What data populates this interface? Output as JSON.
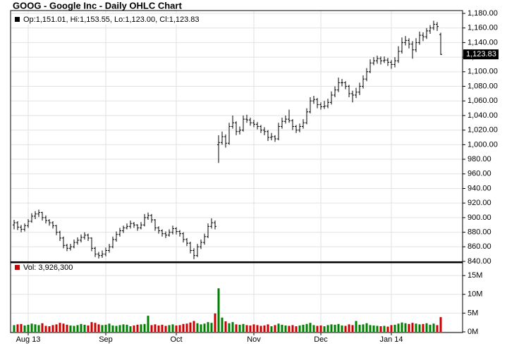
{
  "chart_data": {
    "type": "ohlc",
    "title": "GOOG - Google Inc - Daily OHLC Chart",
    "ohlc_label": "Op:1,151.01, Hi:1,153.55, Lo:1,123.00, Cl:1,123.83",
    "last_label": "1,123.83",
    "color": "#000000",
    "grid": true,
    "categories": [
      null,
      null,
      null,
      null,
      "Aug 13",
      null,
      null,
      null,
      null,
      null,
      null,
      null,
      null,
      null,
      null,
      null,
      null,
      null,
      null,
      null,
      null,
      null,
      null,
      null,
      null,
      null,
      "Sep",
      null,
      null,
      null,
      null,
      null,
      null,
      null,
      null,
      null,
      null,
      null,
      null,
      null,
      null,
      null,
      null,
      null,
      null,
      null,
      "Oct",
      null,
      null,
      null,
      null,
      null,
      null,
      null,
      null,
      null,
      null,
      null,
      null,
      null,
      null,
      null,
      null,
      null,
      null,
      null,
      null,
      null,
      "Nov",
      null,
      null,
      null,
      null,
      null,
      null,
      null,
      null,
      null,
      null,
      null,
      null,
      null,
      null,
      null,
      null,
      null,
      null,
      "Dec",
      null,
      null,
      null,
      null,
      null,
      null,
      null,
      null,
      null,
      null,
      null,
      null,
      null,
      null,
      null,
      null,
      null,
      null,
      null,
      "Jan 14",
      null,
      null,
      null,
      null,
      null,
      null,
      null,
      null,
      null,
      null,
      null,
      null,
      null,
      null
    ],
    "ohlc": [
      [
        890,
        897,
        884,
        893
      ],
      [
        893,
        895,
        883,
        887
      ],
      [
        887,
        890,
        880,
        884
      ],
      [
        884,
        892,
        881,
        889
      ],
      [
        889,
        898,
        886,
        895
      ],
      [
        895,
        906,
        893,
        902
      ],
      [
        902,
        909,
        898,
        905
      ],
      [
        905,
        911,
        901,
        907
      ],
      [
        907,
        908,
        896,
        900
      ],
      [
        900,
        903,
        892,
        896
      ],
      [
        896,
        898,
        889,
        893
      ],
      [
        893,
        895,
        885,
        889
      ],
      [
        889,
        890,
        876,
        880
      ],
      [
        880,
        882,
        868,
        872
      ],
      [
        872,
        874,
        858,
        862
      ],
      [
        862,
        864,
        854,
        858
      ],
      [
        858,
        864,
        855,
        860
      ],
      [
        860,
        870,
        858,
        866
      ],
      [
        866,
        873,
        863,
        869
      ],
      [
        869,
        877,
        866,
        873
      ],
      [
        873,
        880,
        870,
        876
      ],
      [
        876,
        878,
        868,
        872
      ],
      [
        872,
        873,
        854,
        858
      ],
      [
        858,
        860,
        846,
        850
      ],
      [
        850,
        853,
        844,
        848
      ],
      [
        848,
        855,
        845,
        850
      ],
      [
        850,
        859,
        847,
        855
      ],
      [
        855,
        864,
        852,
        860
      ],
      [
        860,
        874,
        858,
        870
      ],
      [
        870,
        881,
        867,
        877
      ],
      [
        877,
        886,
        874,
        882
      ],
      [
        882,
        889,
        879,
        886
      ],
      [
        886,
        892,
        884,
        888
      ],
      [
        888,
        896,
        885,
        892
      ],
      [
        892,
        894,
        886,
        890
      ],
      [
        890,
        891,
        882,
        886
      ],
      [
        886,
        894,
        884,
        890
      ],
      [
        890,
        905,
        888,
        900
      ],
      [
        900,
        907,
        897,
        903
      ],
      [
        903,
        905,
        893,
        897
      ],
      [
        897,
        898,
        882,
        886
      ],
      [
        886,
        888,
        878,
        882
      ],
      [
        882,
        884,
        874,
        878
      ],
      [
        878,
        881,
        872,
        876
      ],
      [
        876,
        884,
        874,
        880
      ],
      [
        880,
        889,
        877,
        885
      ],
      [
        885,
        887,
        877,
        881
      ],
      [
        881,
        883,
        874,
        878
      ],
      [
        878,
        880,
        866,
        870
      ],
      [
        870,
        872,
        861,
        865
      ],
      [
        865,
        867,
        851,
        855
      ],
      [
        855,
        858,
        843,
        848
      ],
      [
        848,
        864,
        846,
        860
      ],
      [
        860,
        870,
        857,
        866
      ],
      [
        866,
        878,
        863,
        874
      ],
      [
        874,
        892,
        872,
        888
      ],
      [
        888,
        899,
        885,
        893
      ],
      [
        893,
        896,
        884,
        888
      ],
      [
        1000,
        1013,
        975,
        1003
      ],
      [
        1003,
        1018,
        1000,
        1011
      ],
      [
        1011,
        1014,
        996,
        1002
      ],
      [
        1002,
        1030,
        1000,
        1025
      ],
      [
        1025,
        1040,
        1022,
        1030
      ],
      [
        1030,
        1032,
        1013,
        1018
      ],
      [
        1018,
        1025,
        1014,
        1020
      ],
      [
        1020,
        1040,
        1018,
        1035
      ],
      [
        1035,
        1041,
        1030,
        1034
      ],
      [
        1034,
        1037,
        1026,
        1030
      ],
      [
        1030,
        1034,
        1024,
        1028
      ],
      [
        1028,
        1031,
        1021,
        1025
      ],
      [
        1025,
        1027,
        1016,
        1020
      ],
      [
        1020,
        1024,
        1013,
        1018
      ],
      [
        1018,
        1020,
        1005,
        1010
      ],
      [
        1010,
        1016,
        1006,
        1011
      ],
      [
        1011,
        1013,
        1004,
        1008
      ],
      [
        1008,
        1030,
        1006,
        1025
      ],
      [
        1025,
        1037,
        1022,
        1032
      ],
      [
        1032,
        1040,
        1029,
        1035
      ],
      [
        1035,
        1048,
        1030,
        1033
      ],
      [
        1033,
        1035,
        1020,
        1025
      ],
      [
        1025,
        1027,
        1016,
        1020
      ],
      [
        1020,
        1029,
        1017,
        1025
      ],
      [
        1025,
        1035,
        1022,
        1030
      ],
      [
        1030,
        1050,
        1028,
        1045
      ],
      [
        1045,
        1065,
        1043,
        1060
      ],
      [
        1060,
        1067,
        1056,
        1062
      ],
      [
        1062,
        1064,
        1050,
        1055
      ],
      [
        1055,
        1058,
        1048,
        1052
      ],
      [
        1052,
        1060,
        1049,
        1053
      ],
      [
        1053,
        1063,
        1050,
        1058
      ],
      [
        1058,
        1073,
        1055,
        1068
      ],
      [
        1068,
        1080,
        1065,
        1075
      ],
      [
        1075,
        1092,
        1072,
        1085
      ],
      [
        1085,
        1090,
        1080,
        1085
      ],
      [
        1085,
        1087,
        1076,
        1080
      ],
      [
        1080,
        1082,
        1065,
        1070
      ],
      [
        1070,
        1074,
        1058,
        1068
      ],
      [
        1068,
        1078,
        1064,
        1072
      ],
      [
        1072,
        1085,
        1068,
        1080
      ],
      [
        1080,
        1095,
        1077,
        1090
      ],
      [
        1090,
        1105,
        1087,
        1100
      ],
      [
        1100,
        1117,
        1098,
        1112
      ],
      [
        1112,
        1120,
        1109,
        1115
      ],
      [
        1115,
        1122,
        1111,
        1118
      ],
      [
        1118,
        1121,
        1110,
        1115
      ],
      [
        1115,
        1121,
        1112,
        1116
      ],
      [
        1116,
        1119,
        1108,
        1113
      ],
      [
        1113,
        1116,
        1104,
        1110
      ],
      [
        1110,
        1120,
        1106,
        1115
      ],
      [
        1115,
        1135,
        1112,
        1128
      ],
      [
        1128,
        1147,
        1125,
        1140
      ],
      [
        1140,
        1149,
        1136,
        1143
      ],
      [
        1143,
        1146,
        1132,
        1138
      ],
      [
        1138,
        1142,
        1118,
        1130
      ],
      [
        1130,
        1146,
        1127,
        1140
      ],
      [
        1140,
        1155,
        1137,
        1150
      ],
      [
        1150,
        1154,
        1142,
        1148
      ],
      [
        1148,
        1160,
        1145,
        1156
      ],
      [
        1156,
        1164,
        1152,
        1160
      ],
      [
        1160,
        1170,
        1157,
        1165
      ],
      [
        1165,
        1168,
        1156,
        1162
      ],
      [
        1151.01,
        1153.55,
        1123.0,
        1123.83
      ]
    ],
    "ylim": [
      840,
      1180
    ],
    "yticks": [
      {
        "value": 840,
        "label": "840.00"
      },
      {
        "value": 860,
        "label": "860.00"
      },
      {
        "value": 880,
        "label": "880.00"
      },
      {
        "value": 900,
        "label": "900.00"
      },
      {
        "value": 920,
        "label": "920.00"
      },
      {
        "value": 940,
        "label": "940.00"
      },
      {
        "value": 960,
        "label": "960.00"
      },
      {
        "value": 980,
        "label": "980.00"
      },
      {
        "value": 1000,
        "label": "1,000.00"
      },
      {
        "value": 1020,
        "label": "1,020.00"
      },
      {
        "value": 1040,
        "label": "1,040.00"
      },
      {
        "value": 1060,
        "label": "1,060.00"
      },
      {
        "value": 1080,
        "label": "1,080.00"
      },
      {
        "value": 1100,
        "label": "1,100.00"
      },
      {
        "value": 1120,
        "label": "1,120.00"
      },
      {
        "value": 1140,
        "label": "1,140.00"
      },
      {
        "value": 1160,
        "label": "1,160.00"
      },
      {
        "value": 1180,
        "label": "1,180.00"
      }
    ],
    "volume": {
      "label": "Vol: 3,926,300",
      "up_color": "#008000",
      "down_color": "#cc0000",
      "ylim": [
        0,
        18400000
      ],
      "yticks": [
        {
          "value": 0,
          "label": "0M"
        },
        {
          "value": 5000000,
          "label": "5M"
        },
        {
          "value": 10000000,
          "label": "10M"
        },
        {
          "value": 15000000,
          "label": "15M"
        }
      ],
      "values": [
        1800000,
        2000000,
        2100000,
        1700000,
        1900000,
        2200000,
        2000000,
        1800000,
        2300000,
        1600000,
        1500000,
        1800000,
        2000000,
        2400000,
        2200000,
        1900000,
        1700000,
        1600000,
        1800000,
        2100000,
        1900000,
        1700000,
        2600000,
        2400000,
        2000000,
        1800000,
        1900000,
        2200000,
        1700000,
        1600000,
        1800000,
        2000000,
        1900000,
        1500000,
        1700000,
        1900000,
        2000000,
        2100000,
        4300000,
        1800000,
        2000000,
        1700000,
        1900000,
        1600000,
        1800000,
        2000000,
        1700000,
        1800000,
        2100000,
        2200000,
        2500000,
        2900000,
        2300000,
        2000000,
        2200000,
        2600000,
        2400000,
        4900000,
        11600000,
        3800000,
        2800000,
        2300000,
        2600000,
        2000000,
        1900000,
        2100000,
        1800000,
        1700000,
        2000000,
        1800000,
        1600000,
        1700000,
        2000000,
        1500000,
        1800000,
        2200000,
        1900000,
        1700000,
        1600000,
        1800000,
        1500000,
        1700000,
        1900000,
        2100000,
        2400000,
        1800000,
        1600000,
        1700000,
        1500000,
        1800000,
        2000000,
        1900000,
        2100000,
        1700000,
        1600000,
        2000000,
        1800000,
        2900000,
        1900000,
        2000000,
        2300000,
        1800000,
        1700000,
        1600000,
        1500000,
        1600000,
        1400000,
        1800000,
        1900000,
        2200000,
        2500000,
        2300000,
        2100000,
        2400000,
        2200000,
        2000000,
        2100000,
        2300000,
        1900000,
        2200000,
        1800000,
        3926300
      ]
    }
  }
}
